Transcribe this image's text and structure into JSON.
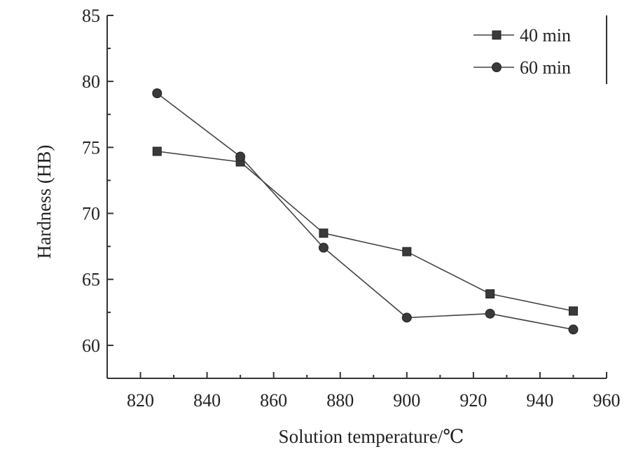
{
  "chart_data": {
    "type": "line",
    "xlabel": "Solution temperature/℃",
    "ylabel": "Hardness (HB)",
    "xlim": [
      810,
      960
    ],
    "ylim": [
      57.5,
      85
    ],
    "xticks": [
      820,
      840,
      860,
      880,
      900,
      920,
      940,
      960
    ],
    "yticks": [
      60,
      65,
      70,
      75,
      80,
      85
    ],
    "grid": false,
    "legend_position": "top-right",
    "x": [
      825,
      850,
      875,
      900,
      925,
      950
    ],
    "series": [
      {
        "name": "40 min",
        "marker": "square",
        "values": [
          74.7,
          73.9,
          68.5,
          67.1,
          63.9,
          62.6
        ]
      },
      {
        "name": "60 min",
        "marker": "circle",
        "values": [
          79.1,
          74.3,
          67.4,
          62.1,
          62.4,
          61.2
        ]
      }
    ],
    "colors": {
      "line": "#444444",
      "marker": "#3a3a3a",
      "axis": "#333333"
    }
  }
}
